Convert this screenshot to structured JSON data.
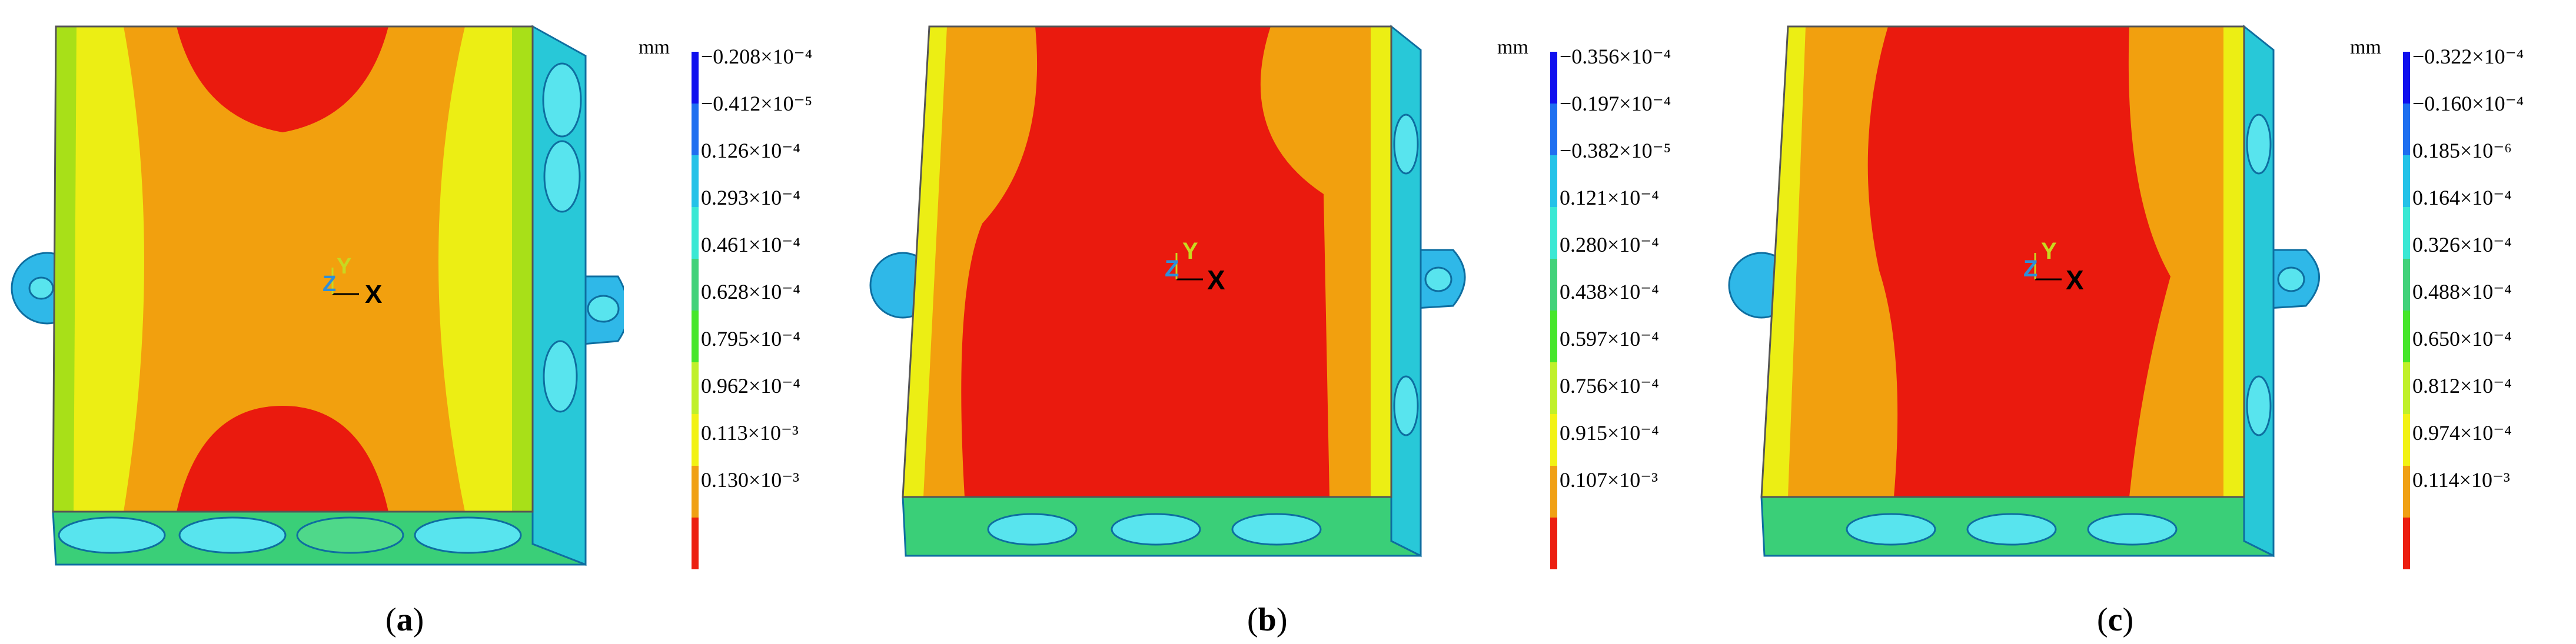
{
  "colors": {
    "scale": [
      "#1010ee",
      "#1e6ff0",
      "#24c2e8",
      "#3ae8d4",
      "#42d27a",
      "#46e62a",
      "#c0f02a",
      "#f2f214",
      "#f0a014",
      "#ec1e10"
    ],
    "face_red": "#ea1a0e",
    "face_orange": "#f2a00e",
    "face_yellow": "#ecee14",
    "face_green": "#a8e018",
    "side_blue": "#2fb8e8",
    "hole_cyan": "#58e4ee"
  },
  "panels": [
    {
      "caption": "(a)",
      "caption_letter": "a",
      "unit": "mm",
      "legend": [
        "−0.208×10⁻⁴",
        "−0.412×10⁻⁵",
        "0.126×10⁻⁴",
        "0.293×10⁻⁴",
        "0.461×10⁻⁴",
        "0.628×10⁻⁴",
        "0.795×10⁻⁴",
        "0.962×10⁻⁴",
        "0.113×10⁻³",
        "0.130×10⁻³"
      ],
      "axes": {
        "y": "Y",
        "z": "Z",
        "x": "X"
      }
    },
    {
      "caption": "(b)",
      "caption_letter": "b",
      "unit": "mm",
      "legend": [
        "−0.356×10⁻⁴",
        "−0.197×10⁻⁴",
        "−0.382×10⁻⁵",
        "0.121×10⁻⁴",
        "0.280×10⁻⁴",
        "0.438×10⁻⁴",
        "0.597×10⁻⁴",
        "0.756×10⁻⁴",
        "0.915×10⁻⁴",
        "0.107×10⁻³"
      ],
      "axes": {
        "y": "Y",
        "z": "Z",
        "x": "X"
      }
    },
    {
      "caption": "(c)",
      "caption_letter": "c",
      "unit": "mm",
      "legend": [
        "−0.322×10⁻⁴",
        "−0.160×10⁻⁴",
        "0.185×10⁻⁶",
        "0.164×10⁻⁴",
        "0.326×10⁻⁴",
        "0.488×10⁻⁴",
        "0.650×10⁻⁴",
        "0.812×10⁻⁴",
        "0.974×10⁻⁴",
        "0.114×10⁻³"
      ],
      "axes": {
        "y": "Y",
        "z": "Z",
        "x": "X"
      }
    }
  ]
}
